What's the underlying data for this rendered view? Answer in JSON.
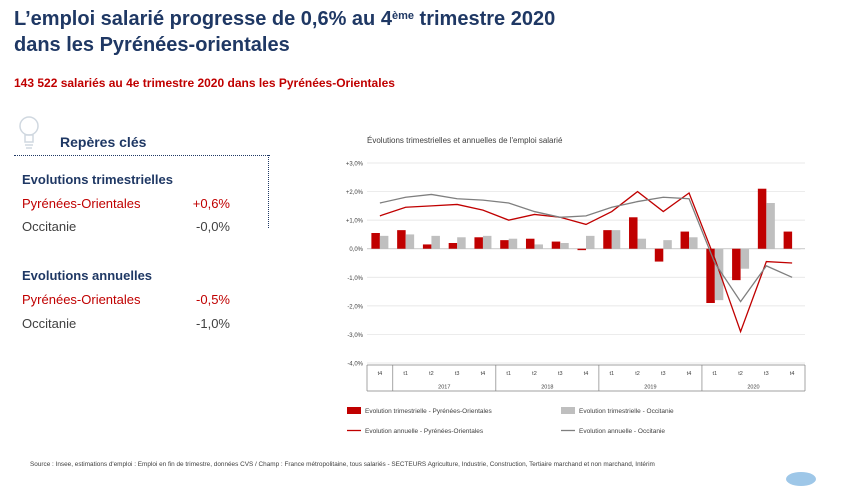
{
  "header": {
    "title_line1_prefix": "L’emploi salarié progresse de 0,6% au 4",
    "title_line1_sup": "ème",
    "title_line1_suffix": " trimestre 2020",
    "title_line2": "dans les Pyrénées-orientales",
    "subtitle": "143 522 salariés au 4e trimestre 2020 dans les Pyrénées-Orientales"
  },
  "key_figures": {
    "heading": "Repères clés",
    "quarterly": {
      "heading": "Evolutions trimestrielles",
      "rows": [
        {
          "label": "Pyrénées-Orientales",
          "value": "+0,6%"
        },
        {
          "label": "Occitanie",
          "value": "-0,0%"
        }
      ]
    },
    "annual": {
      "heading": "Evolutions annuelles",
      "rows": [
        {
          "label": "Pyrénées-Orientales",
          "value": "-0,5%"
        },
        {
          "label": "Occitanie",
          "value": "-1,0%"
        }
      ]
    }
  },
  "colors": {
    "title": "#1f3864",
    "accent_red": "#c00000",
    "series_red": "#c00000",
    "series_grey": "#bfbfbf",
    "line_grey": "#7f7f7f"
  },
  "chart_data": {
    "type": "bar",
    "title": "Évolutions trimestrielles et annuelles de l'emploi salarié",
    "categories": [
      "t4",
      "t1",
      "t2",
      "t3",
      "t4",
      "t1",
      "t2",
      "t3",
      "t4",
      "t1",
      "t2",
      "t3",
      "t4",
      "t1",
      "t2",
      "t3",
      "t4"
    ],
    "year_groups": [
      {
        "label": "",
        "span": 1
      },
      {
        "label": "2017",
        "span": 4
      },
      {
        "label": "2018",
        "span": 4
      },
      {
        "label": "2019",
        "span": 4
      },
      {
        "label": "2020",
        "span": 4
      }
    ],
    "ylim": [
      -4.0,
      3.0
    ],
    "yticks": [
      3.0,
      2.0,
      1.0,
      0.0,
      -1.0,
      -2.0,
      -3.0,
      -4.0
    ],
    "ytick_labels": [
      "+3,0%",
      "+2,0%",
      "+1,0%",
      "0,0%",
      "-1,0%",
      "-2,0%",
      "-3,0%",
      "-4,0%"
    ],
    "grid": true,
    "legend_position": "bottom",
    "series": [
      {
        "name": "Evolution trimestrielle - Pyrénées-Orientales",
        "kind": "bar",
        "color": "#c00000",
        "values": [
          0.55,
          0.65,
          0.15,
          0.2,
          0.4,
          0.3,
          0.35,
          0.25,
          -0.05,
          0.65,
          1.1,
          -0.45,
          0.6,
          -1.9,
          -1.1,
          2.1,
          0.6
        ]
      },
      {
        "name": "Evolution trimestrielle - Occitanie",
        "kind": "bar",
        "color": "#bfbfbf",
        "values": [
          0.45,
          0.5,
          0.45,
          0.4,
          0.45,
          0.35,
          0.15,
          0.2,
          0.45,
          0.65,
          0.35,
          0.3,
          0.4,
          -1.8,
          -0.7,
          1.6,
          0.0
        ]
      },
      {
        "name": "Evolution annuelle - Pyrénées-Orientales",
        "kind": "line",
        "color": "#c00000",
        "values": [
          1.15,
          1.45,
          1.5,
          1.55,
          1.35,
          1.0,
          1.2,
          1.1,
          0.85,
          1.3,
          2.0,
          1.3,
          1.95,
          -0.35,
          -2.9,
          -0.45,
          -0.5
        ]
      },
      {
        "name": "Evolution annuelle - Occitanie",
        "kind": "line",
        "color": "#7f7f7f",
        "values": [
          1.6,
          1.8,
          1.9,
          1.75,
          1.7,
          1.6,
          1.3,
          1.1,
          1.15,
          1.45,
          1.65,
          1.8,
          1.75,
          -0.5,
          -1.85,
          -0.6,
          -1.0
        ]
      }
    ]
  },
  "source": "Source : Insee, estimations d'emploi  : Emploi en fin de trimestre, données CVS / Champ : France métropolitaine, tous salariés - SECTEURS Agriculture, Industrie, Construction, Tertiaire marchand et non marchand, Intérim"
}
